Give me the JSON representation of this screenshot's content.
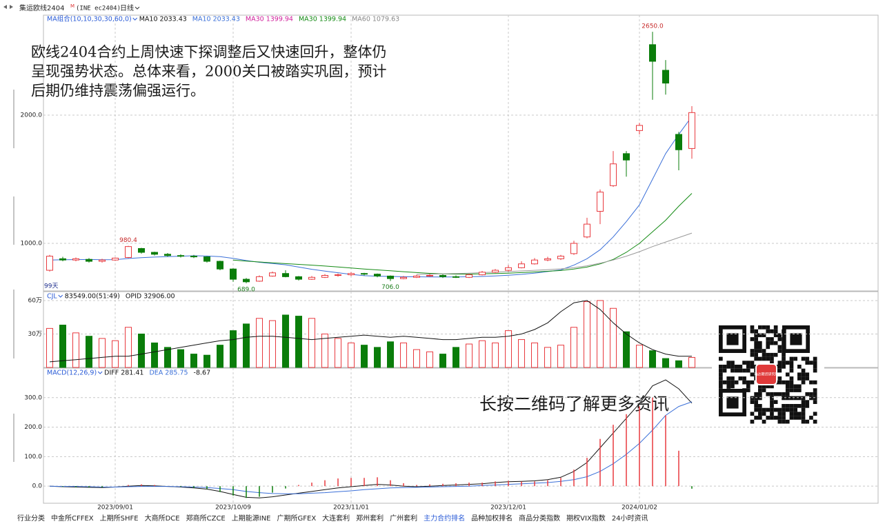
{
  "header": {
    "title": "集运欧线2404",
    "superscript": "M",
    "code": "(INE ec2404)",
    "period": "日线"
  },
  "annotation": [
    "欧线2404合约上周快速下探调整后又快速回升，整体仍",
    "呈现强势状态。总体来看，2000关口被踏实巩固，预计",
    "后期仍维持震荡偏强运行。"
  ],
  "qr_caption": "长按二维码了解更多资讯",
  "qr_logo": "瑞达期货研究院",
  "tabs": [
    "行业分类",
    "中金所CFFEX",
    "上期所SHFE",
    "大商所DCE",
    "郑商所CZCE",
    "上期能源INE",
    "广期所GFEX",
    "大连套利",
    "郑州套利",
    "广州套利",
    "主力合约排名",
    "品种加权排名",
    "商品分类指数",
    "期权VIX指数",
    "24小时资讯"
  ],
  "chart_data": [
    {
      "type": "candlestick",
      "legend_title": "MA组合(10,10,30,30,60,0)",
      "legend_items": [
        {
          "name": "MA10 2033.43",
          "color": "#111111"
        },
        {
          "name": "MA10 2033.43",
          "color": "#3a6fd8"
        },
        {
          "name": "MA30 1399.94",
          "color": "#d0209b"
        },
        {
          "name": "MA30 1399.94",
          "color": "#138a13"
        },
        {
          "name": "MA60 1079.63",
          "color": "#888888"
        }
      ],
      "range_label": "99天",
      "up_color": "#e8383d",
      "down_color": "#0a7d0a",
      "open": [
        790,
        880,
        870,
        875,
        860,
        870,
        890,
        960,
        930,
        915,
        905,
        900,
        895,
        860,
        800,
        720,
        705,
        745,
        765,
        740,
        720,
        735,
        750,
        755,
        765,
        760,
        745,
        725,
        735,
        745,
        750,
        740,
        735,
        755,
        775,
        790,
        810,
        840,
        870,
        880,
        920,
        1050,
        1250,
        1450,
        1700,
        1880,
        2550,
        2350,
        1850,
        1740
      ],
      "high": [
        910,
        895,
        890,
        885,
        880,
        890,
        980.4,
        965,
        935,
        925,
        915,
        910,
        900,
        865,
        805,
        730,
        750,
        780,
        790,
        745,
        745,
        760,
        765,
        775,
        770,
        765,
        750,
        745,
        755,
        760,
        758,
        750,
        765,
        785,
        800,
        830,
        860,
        885,
        895,
        910,
        1020,
        1200,
        1420,
        1720,
        1720,
        1940,
        2650,
        2430,
        1870,
        2070
      ],
      "low": [
        780,
        860,
        860,
        850,
        850,
        865,
        885,
        920,
        905,
        895,
        890,
        885,
        850,
        790,
        700,
        689,
        700,
        740,
        735,
        710,
        715,
        730,
        740,
        745,
        750,
        735,
        706,
        720,
        730,
        740,
        730,
        730,
        730,
        750,
        770,
        780,
        805,
        835,
        860,
        870,
        910,
        1040,
        1150,
        1440,
        1520,
        1850,
        2120,
        2160,
        1570,
        1660
      ],
      "close": [
        900,
        870,
        880,
        860,
        870,
        885,
        975,
        930,
        915,
        905,
        900,
        895,
        860,
        800,
        720,
        700,
        740,
        770,
        740,
        720,
        735,
        750,
        755,
        765,
        760,
        745,
        725,
        735,
        745,
        750,
        740,
        735,
        755,
        775,
        790,
        810,
        840,
        870,
        880,
        900,
        1000,
        1150,
        1400,
        1620,
        1650,
        1920,
        2420,
        2250,
        1730,
        2020
      ],
      "high_labels": [
        null,
        null,
        null,
        null,
        null,
        null,
        "980.4",
        null,
        null,
        null,
        null,
        null,
        null,
        null,
        null,
        null,
        null,
        null,
        null,
        null,
        null,
        null,
        null,
        null,
        null,
        null,
        null,
        null,
        null,
        null,
        null,
        null,
        null,
        null,
        null,
        null,
        null,
        null,
        null,
        null,
        null,
        null,
        null,
        null,
        null,
        null,
        "2650.0",
        null,
        null,
        null
      ],
      "low_labels": [
        null,
        null,
        null,
        null,
        null,
        null,
        null,
        null,
        null,
        null,
        null,
        null,
        null,
        null,
        null,
        "689.0",
        null,
        null,
        null,
        null,
        null,
        null,
        null,
        null,
        null,
        null,
        "706.0",
        null,
        null,
        null,
        null,
        null,
        null,
        null,
        null,
        null,
        null,
        null,
        null,
        null,
        null,
        null,
        null,
        null,
        null,
        null,
        null,
        null,
        null,
        null
      ],
      "ma": [
        {
          "color": "#3a6fd8",
          "values": [
            870,
            872,
            873,
            874,
            872,
            873,
            882,
            888,
            893,
            897,
            900,
            903,
            901,
            897,
            883,
            866,
            852,
            843,
            833,
            815,
            798,
            784,
            771,
            758,
            748,
            744,
            742,
            740,
            739,
            738,
            738,
            738,
            740,
            742,
            746,
            751,
            758,
            768,
            780,
            793,
            830,
            880,
            950,
            1050,
            1170,
            1300,
            1500,
            1700,
            1850,
            1990
          ]
        },
        {
          "color": "#138a13",
          "values": [
            null,
            null,
            null,
            null,
            null,
            null,
            null,
            null,
            null,
            null,
            null,
            null,
            null,
            null,
            870,
            862,
            855,
            848,
            842,
            836,
            830,
            823,
            816,
            808,
            800,
            793,
            786,
            779,
            772,
            766,
            762,
            760,
            760,
            762,
            765,
            768,
            772,
            777,
            782,
            788,
            800,
            815,
            840,
            875,
            930,
            1000,
            1090,
            1180,
            1290,
            1390
          ]
        },
        {
          "color": "#999999",
          "values": [
            null,
            null,
            null,
            null,
            null,
            null,
            null,
            null,
            null,
            null,
            null,
            null,
            null,
            null,
            null,
            null,
            null,
            null,
            null,
            null,
            null,
            null,
            null,
            null,
            null,
            null,
            null,
            null,
            758,
            760,
            762,
            765,
            768,
            772,
            776,
            780,
            785,
            790,
            795,
            801,
            810,
            825,
            845,
            870,
            900,
            935,
            975,
            1010,
            1045,
            1080
          ]
        }
      ],
      "ylim": [
        629,
        2780
      ],
      "yticks": [
        {
          "value": 1000,
          "label": "1000.0"
        },
        {
          "value": 2000,
          "label": "2000.0"
        }
      ],
      "grid": true
    },
    {
      "type": "bar",
      "title": "CJL",
      "series": [
        {
          "name": "83549.00(51:49)",
          "values": [
            35,
            38,
            31,
            28,
            26,
            24,
            36,
            30,
            22,
            18,
            16,
            12,
            11,
            20,
            33,
            39,
            44,
            42,
            47,
            46,
            44,
            30,
            26,
            22,
            20,
            18,
            23,
            22,
            16,
            14,
            12,
            18,
            21,
            24,
            22,
            33,
            25,
            22,
            18,
            20,
            36,
            59,
            60,
            53,
            32,
            20,
            15,
            8,
            6,
            9
          ]
        },
        {
          "name": "OPID 32906.00",
          "type": "line",
          "color": "#111111",
          "values": [
            5,
            6,
            7,
            8,
            9,
            10,
            10,
            12,
            14,
            16,
            18,
            20,
            22,
            24,
            25,
            27,
            28,
            28,
            27,
            26,
            25,
            26,
            27,
            28,
            29,
            28,
            27,
            28,
            27,
            26,
            25,
            25,
            26,
            27,
            27,
            28,
            30,
            34,
            40,
            50,
            58,
            60,
            52,
            40,
            30,
            22,
            16,
            12,
            10,
            10
          ]
        }
      ],
      "ylim": [
        0,
        68
      ],
      "yticks": [
        {
          "value": 30,
          "label": "30万"
        },
        {
          "value": 60,
          "label": "60万"
        }
      ],
      "grid": true
    },
    {
      "type": "line",
      "title": "MACD(12,26,9)",
      "categories": [
        null,
        null,
        null,
        null,
        null,
        "2023/09/01",
        null,
        null,
        null,
        null,
        null,
        null,
        null,
        null,
        "2023/10/09",
        null,
        null,
        null,
        null,
        null,
        null,
        null,
        null,
        "2023/11/01",
        null,
        null,
        null,
        null,
        null,
        null,
        null,
        null,
        null,
        null,
        null,
        "2023/12/01",
        null,
        null,
        null,
        null,
        null,
        null,
        null,
        null,
        null,
        "2024/01/02",
        null,
        null,
        null,
        null
      ],
      "series": [
        {
          "name": "DIFF 281.41",
          "color": "#111111",
          "values": [
            0,
            -2,
            -3,
            -4,
            -5,
            -3,
            0,
            2,
            1,
            -1,
            -3,
            -6,
            -10,
            -18,
            -28,
            -38,
            -40,
            -36,
            -30,
            -24,
            -18,
            -12,
            -6,
            -2,
            2,
            6,
            4,
            0,
            -2,
            0,
            2,
            4,
            6,
            8,
            12,
            15,
            16,
            18,
            22,
            30,
            50,
            80,
            130,
            180,
            230,
            280,
            340,
            360,
            330,
            281.41
          ]
        },
        {
          "name": "DEA 285.75",
          "color": "#3a6fd8",
          "values": [
            0,
            -1,
            -1,
            -2,
            -3,
            -3,
            -2,
            -1,
            -1,
            -1,
            -2,
            -3,
            -5,
            -8,
            -12,
            -18,
            -22,
            -25,
            -26,
            -26,
            -24,
            -22,
            -19,
            -16,
            -12,
            -9,
            -6,
            -5,
            -4,
            -3,
            -2,
            -1,
            0,
            2,
            4,
            6,
            8,
            10,
            12,
            16,
            22,
            32,
            50,
            76,
            108,
            145,
            190,
            240,
            270,
            285.75
          ]
        },
        {
          "name": "-8.67",
          "type": "bar",
          "values": [
            0,
            -2,
            -4,
            -4,
            -4,
            0,
            4,
            6,
            4,
            0,
            -2,
            -6,
            -10,
            -20,
            -32,
            -40,
            -36,
            -22,
            -8,
            4,
            12,
            20,
            26,
            28,
            28,
            30,
            20,
            10,
            4,
            6,
            8,
            10,
            12,
            12,
            16,
            18,
            16,
            16,
            20,
            28,
            56,
            96,
            160,
            208,
            244,
            270,
            300,
            240,
            120,
            -8.67
          ]
        }
      ],
      "ylim": [
        -58,
        400
      ],
      "yticks": [
        {
          "value": 0,
          "label": "0.0"
        },
        {
          "value": 100,
          "label": "100.0"
        },
        {
          "value": 200,
          "label": "200.0"
        },
        {
          "value": 300,
          "label": "300.0"
        }
      ],
      "grid": true
    }
  ]
}
